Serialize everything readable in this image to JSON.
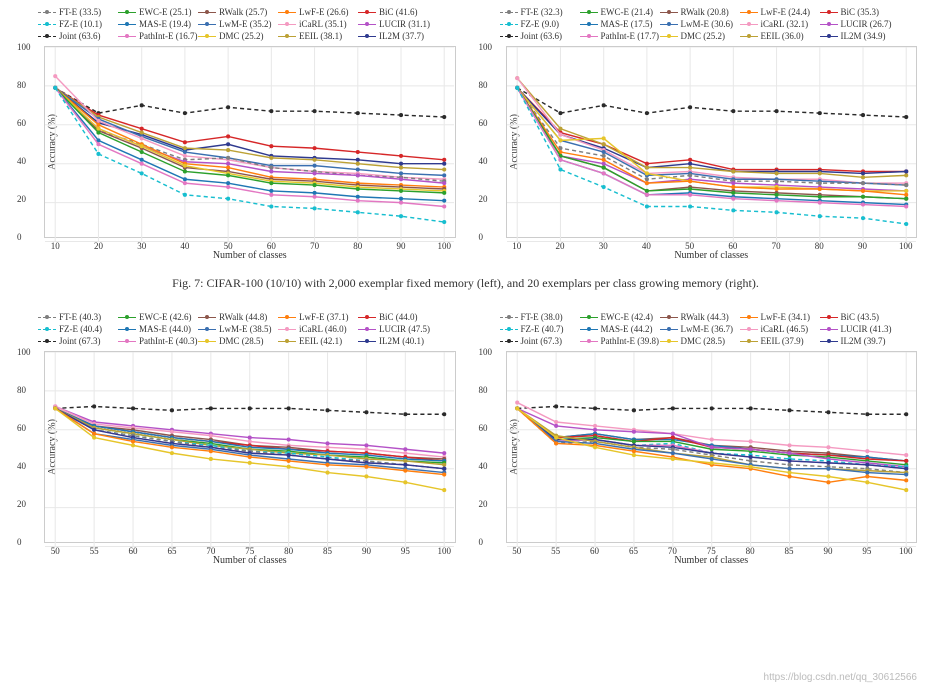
{
  "colors": {
    "FT-E": "#7f7f7f",
    "FZ-E": "#17becf",
    "Joint": "#2a2a2a",
    "EWC-E": "#2ca02c",
    "MAS-E": "#1f77b4",
    "PathInt-E": "#e377c2",
    "RWalk": "#8c564b",
    "LwM-E": "#3a6fb0",
    "DMC": "#e6c52a",
    "LwF-E": "#ff7f0e",
    "iCaRL": "#f49ac1",
    "EEIL": "#bca135",
    "BiC": "#d62728",
    "LUCIR": "#b452c7",
    "IL2M": "#2f3a8f"
  },
  "dashed": [
    "FT-E",
    "FZ-E",
    "Joint"
  ],
  "caption": "Fig. 7: CIFAR-100 (10/10) with 2,000 exemplar fixed memory (left), and 20 exemplars per class growing memory (right).",
  "watermark": "https://blog.csdn.net/qq_30612566",
  "axis": {
    "ylabel": "Accuracy (%)",
    "xlabel": "Number of classes",
    "ylim": [
      0,
      100
    ],
    "yticks": [
      0,
      20,
      40,
      60,
      80,
      100
    ],
    "tick_fontsize": 9,
    "label_fontsize": 10,
    "grid_color": "#e8e8e8",
    "background": "#ffffff"
  },
  "panels": [
    {
      "x": [
        10,
        20,
        30,
        40,
        50,
        60,
        70,
        80,
        90,
        100
      ],
      "legend_scores": {
        "FT-E": 33.5,
        "FZ-E": 10.1,
        "Joint": 63.6,
        "EWC-E": 25.1,
        "MAS-E": 19.4,
        "PathInt-E": 16.7,
        "RWalk": 25.7,
        "LwM-E": 35.2,
        "DMC": 25.2,
        "LwF-E": 26.6,
        "iCaRL": 35.1,
        "EEIL": 38.1,
        "BiC": 41.6,
        "LUCIR": 31.1,
        "IL2M": 37.7
      },
      "series": {
        "Joint": [
          79,
          66,
          70,
          66,
          69,
          67,
          67,
          66,
          65,
          64
        ],
        "BiC": [
          79,
          65,
          58,
          51,
          54,
          49,
          48,
          46,
          44,
          42
        ],
        "IL2M": [
          79,
          61,
          55,
          47,
          50,
          44,
          43,
          42,
          40,
          40
        ],
        "EEIL": [
          79,
          64,
          56,
          48,
          47,
          43,
          42,
          40,
          38,
          37
        ],
        "LwM-E": [
          79,
          63,
          54,
          46,
          43,
          39,
          39,
          37,
          35,
          34
        ],
        "iCaRL": [
          85,
          62,
          53,
          44,
          42,
          38,
          36,
          35,
          33,
          32
        ],
        "FT-E": [
          79,
          57,
          50,
          42,
          43,
          38,
          36,
          34,
          33,
          31
        ],
        "LUCIR": [
          79,
          58,
          49,
          41,
          40,
          36,
          35,
          34,
          32,
          30
        ],
        "LwF-E": [
          79,
          60,
          50,
          40,
          38,
          33,
          32,
          30,
          29,
          28
        ],
        "RWalk": [
          79,
          57,
          48,
          38,
          36,
          32,
          31,
          29,
          28,
          27
        ],
        "DMC": [
          79,
          58,
          49,
          39,
          35,
          31,
          30,
          28,
          27,
          26
        ],
        "EWC-E": [
          79,
          56,
          46,
          36,
          34,
          30,
          29,
          27,
          26,
          25
        ],
        "MAS-E": [
          79,
          52,
          42,
          32,
          30,
          26,
          25,
          23,
          22,
          21
        ],
        "PathInt-E": [
          79,
          50,
          40,
          30,
          28,
          24,
          23,
          21,
          20,
          18
        ],
        "FZ-E": [
          79,
          45,
          35,
          24,
          22,
          18,
          17,
          15,
          13,
          10
        ]
      }
    },
    {
      "x": [
        10,
        20,
        30,
        40,
        50,
        60,
        70,
        80,
        90,
        100
      ],
      "legend_scores": {
        "FT-E": 32.3,
        "FZ-E": 9.0,
        "Joint": 63.6,
        "EWC-E": 21.4,
        "MAS-E": 17.5,
        "PathInt-E": 17.7,
        "RWalk": 20.8,
        "LwM-E": 30.6,
        "DMC": 25.2,
        "LwF-E": 24.4,
        "iCaRL": 32.1,
        "EEIL": 36.0,
        "BiC": 35.3,
        "LUCIR": 26.7,
        "IL2M": 34.9
      },
      "series": {
        "Joint": [
          79,
          66,
          70,
          66,
          69,
          67,
          67,
          66,
          65,
          64
        ],
        "BiC": [
          79,
          56,
          50,
          40,
          42,
          37,
          37,
          37,
          36,
          36
        ],
        "IL2M": [
          79,
          55,
          48,
          38,
          40,
          36,
          36,
          36,
          35,
          36
        ],
        "EEIL": [
          84,
          58,
          50,
          38,
          38,
          36,
          35,
          35,
          33,
          34
        ],
        "iCaRL": [
          84,
          55,
          47,
          35,
          36,
          33,
          32,
          32,
          30,
          30
        ],
        "LwM-E": [
          79,
          52,
          46,
          34,
          35,
          32,
          32,
          31,
          30,
          29
        ],
        "FT-E": [
          79,
          48,
          44,
          32,
          34,
          31,
          31,
          30,
          30,
          29
        ],
        "LUCIR": [
          79,
          44,
          40,
          30,
          32,
          30,
          29,
          28,
          27,
          26
        ],
        "DMC": [
          79,
          52,
          53,
          35,
          31,
          28,
          28,
          27,
          26,
          26
        ],
        "LwF-E": [
          79,
          46,
          42,
          30,
          31,
          28,
          27,
          27,
          26,
          24
        ],
        "RWalk": [
          79,
          44,
          38,
          26,
          28,
          26,
          25,
          24,
          23,
          22
        ],
        "EWC-E": [
          79,
          44,
          38,
          26,
          27,
          25,
          24,
          23,
          23,
          22
        ],
        "MAS-E": [
          79,
          42,
          35,
          24,
          25,
          23,
          22,
          21,
          20,
          19
        ],
        "PathInt-E": [
          79,
          42,
          35,
          24,
          24,
          22,
          21,
          20,
          19,
          18
        ],
        "FZ-E": [
          79,
          37,
          28,
          18,
          18,
          16,
          15,
          13,
          12,
          9
        ]
      }
    },
    {
      "x": [
        50,
        55,
        60,
        65,
        70,
        75,
        80,
        85,
        90,
        95,
        100
      ],
      "legend_scores": {
        "FT-E": 40.3,
        "FZ-E": 40.4,
        "Joint": 67.3,
        "EWC-E": 42.6,
        "MAS-E": 44.0,
        "PathInt-E": 40.3,
        "RWalk": 44.8,
        "LwM-E": 38.5,
        "DMC": 28.5,
        "LwF-E": 37.1,
        "iCaRL": 46.0,
        "EEIL": 42.1,
        "BiC": 44.0,
        "LUCIR": 47.5,
        "IL2M": 40.1
      },
      "series": {
        "Joint": [
          71,
          72,
          71,
          70,
          71,
          71,
          71,
          70,
          69,
          68,
          68
        ],
        "LUCIR": [
          72,
          64,
          62,
          60,
          58,
          56,
          55,
          53,
          52,
          50,
          48
        ],
        "iCaRL": [
          72,
          63,
          61,
          59,
          57,
          54,
          52,
          51,
          50,
          48,
          46
        ],
        "RWalk": [
          71,
          62,
          60,
          57,
          55,
          52,
          51,
          49,
          48,
          46,
          45
        ],
        "BiC": [
          71,
          62,
          59,
          56,
          54,
          52,
          50,
          49,
          48,
          46,
          44
        ],
        "MAS-E": [
          71,
          62,
          59,
          56,
          54,
          51,
          50,
          48,
          47,
          45,
          44
        ],
        "EWC-E": [
          71,
          61,
          58,
          55,
          53,
          50,
          49,
          47,
          46,
          44,
          43
        ],
        "EEIL": [
          71,
          61,
          58,
          55,
          52,
          50,
          48,
          47,
          45,
          44,
          42
        ],
        "FZ-E": [
          71,
          60,
          57,
          54,
          52,
          49,
          48,
          46,
          44,
          42,
          40
        ],
        "FT-E": [
          71,
          60,
          57,
          54,
          51,
          49,
          47,
          45,
          44,
          42,
          40
        ],
        "PathInt-E": [
          71,
          60,
          56,
          53,
          51,
          48,
          47,
          45,
          43,
          42,
          40
        ],
        "IL2M": [
          71,
          60,
          56,
          53,
          51,
          48,
          47,
          45,
          43,
          42,
          40
        ],
        "LwM-E": [
          71,
          58,
          55,
          52,
          50,
          47,
          45,
          43,
          42,
          40,
          38
        ],
        "LwF-E": [
          71,
          58,
          54,
          51,
          49,
          46,
          44,
          42,
          41,
          39,
          37
        ],
        "DMC": [
          71,
          56,
          52,
          48,
          45,
          43,
          41,
          38,
          36,
          33,
          29
        ]
      }
    },
    {
      "x": [
        50,
        55,
        60,
        65,
        70,
        75,
        80,
        85,
        90,
        95,
        100
      ],
      "legend_scores": {
        "FT-E": 38.0,
        "FZ-E": 40.7,
        "Joint": 67.3,
        "EWC-E": 42.4,
        "MAS-E": 44.2,
        "PathInt-E": 39.8,
        "RWalk": 44.3,
        "LwM-E": 36.7,
        "DMC": 28.5,
        "LwF-E": 34.1,
        "iCaRL": 46.5,
        "EEIL": 37.9,
        "BiC": 43.5,
        "LUCIR": 41.3,
        "IL2M": 39.7
      },
      "series": {
        "Joint": [
          71,
          72,
          71,
          70,
          71,
          71,
          71,
          70,
          69,
          68,
          68
        ],
        "iCaRL": [
          74,
          64,
          62,
          60,
          58,
          55,
          54,
          52,
          51,
          49,
          47
        ],
        "RWalk": [
          71,
          56,
          58,
          55,
          56,
          52,
          51,
          49,
          48,
          46,
          44
        ],
        "MAS-E": [
          71,
          56,
          58,
          55,
          55,
          52,
          50,
          48,
          47,
          46,
          44
        ],
        "BiC": [
          71,
          56,
          57,
          54,
          56,
          51,
          50,
          48,
          47,
          45,
          44
        ],
        "EWC-E": [
          71,
          55,
          56,
          54,
          54,
          50,
          49,
          47,
          46,
          44,
          42
        ],
        "LUCIR": [
          71,
          62,
          60,
          59,
          58,
          51,
          50,
          48,
          45,
          43,
          41
        ],
        "FZ-E": [
          71,
          55,
          55,
          52,
          53,
          48,
          47,
          45,
          44,
          42,
          41
        ],
        "PathInt-E": [
          71,
          54,
          55,
          52,
          52,
          48,
          46,
          44,
          43,
          42,
          40
        ],
        "IL2M": [
          71,
          55,
          55,
          52,
          51,
          48,
          46,
          44,
          43,
          42,
          40
        ],
        "FT-E": [
          71,
          53,
          54,
          51,
          50,
          47,
          44,
          42,
          41,
          40,
          38
        ],
        "EEIL": [
          71,
          57,
          54,
          51,
          48,
          46,
          42,
          40,
          40,
          39,
          38
        ],
        "LwM-E": [
          71,
          54,
          53,
          50,
          48,
          45,
          42,
          40,
          40,
          38,
          37
        ],
        "LwF-E": [
          71,
          53,
          52,
          49,
          46,
          42,
          40,
          36,
          33,
          36,
          34
        ],
        "DMC": [
          71,
          56,
          51,
          47,
          45,
          43,
          41,
          38,
          36,
          33,
          29
        ]
      }
    }
  ],
  "legend_order": [
    "FT-E",
    "EWC-E",
    "RWalk",
    "LwF-E",
    "BiC",
    "FZ-E",
    "MAS-E",
    "LwM-E",
    "iCaRL",
    "LUCIR",
    "Joint",
    "PathInt-E",
    "DMC",
    "EEIL",
    "IL2M"
  ]
}
